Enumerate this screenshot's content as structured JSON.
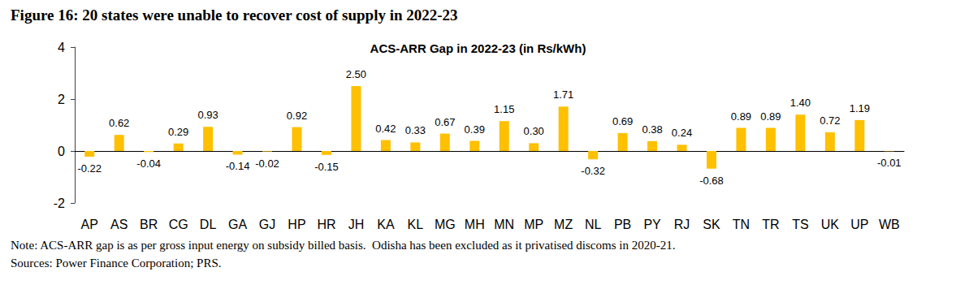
{
  "chart_data": {
    "type": "bar",
    "title": "Figure 16: 20 states were unable to recover cost of supply in 2022-23",
    "subtitle": "ACS-ARR Gap in 2022-23 (in Rs/kWh)",
    "annotations": [
      "Note: ACS-ARR gap is as per gross input energy on subsidy billed basis.  Odisha has been excluded as it privatised discoms in 2020-21.",
      "Sources: Power Finance Corporation; PRS."
    ],
    "categories": [
      "AP",
      "AS",
      "BR",
      "CG",
      "DL",
      "GA",
      "GJ",
      "HP",
      "HR",
      "JH",
      "KA",
      "KL",
      "MG",
      "MH",
      "MN",
      "MP",
      "MZ",
      "NL",
      "PB",
      "PY",
      "RJ",
      "SK",
      "TN",
      "TR",
      "TS",
      "UK",
      "UP",
      "WB"
    ],
    "values": [
      -0.22,
      0.62,
      -0.04,
      0.29,
      0.93,
      -0.14,
      -0.02,
      0.92,
      -0.15,
      2.5,
      0.42,
      0.33,
      0.67,
      0.39,
      1.15,
      0.3,
      1.71,
      -0.32,
      0.69,
      0.38,
      0.24,
      -0.68,
      0.89,
      0.89,
      1.4,
      0.72,
      1.19,
      -0.01
    ],
    "value_labels": [
      "-0.22",
      "0.62",
      "-0.04",
      "0.29",
      "0.93",
      "-0.14",
      "-0.02",
      "0.92",
      "-0.15",
      "2.50",
      "0.42",
      "0.33",
      "0.67",
      "0.39",
      "1.15",
      "0.30",
      "1.71",
      "-0.32",
      "0.69",
      "0.38",
      "0.24",
      "-0.68",
      "0.89",
      "0.89",
      "1.40",
      "0.72",
      "1.19",
      "-0.01"
    ],
    "color": "#FFC000",
    "ylim": [
      -2,
      4
    ],
    "yticks": [
      -2,
      0,
      2,
      4
    ],
    "grid": false,
    "data_labels": true
  }
}
